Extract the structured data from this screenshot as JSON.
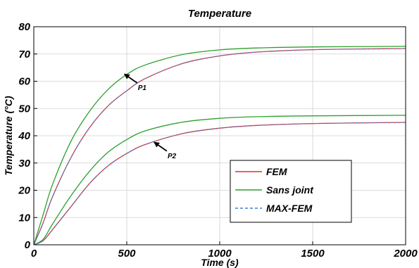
{
  "chart_data": {
    "type": "line",
    "title": "Temperature",
    "xlabel": "Time (s)",
    "ylabel": "Temperature (°C)",
    "xlim": [
      0,
      2000
    ],
    "ylim": [
      0,
      80
    ],
    "xticks": [
      0,
      500,
      1000,
      1500,
      2000
    ],
    "yticks": [
      0,
      10,
      20,
      30,
      40,
      50,
      60,
      70,
      80
    ],
    "grid": true,
    "legend_position": "bottom-right",
    "series": [
      {
        "name": "FEM",
        "color": "#e0302a",
        "dash": "solid",
        "curves": [
          {
            "x": [
              0,
              50,
              100,
              200,
              300,
              400,
              500,
              600,
              800,
              1000,
              1200,
              1500,
              2000
            ],
            "y": [
              0,
              8,
              17.5,
              32,
              43,
              51,
              56.5,
              61,
              66.5,
              69.3,
              70.7,
              71.6,
              72
            ]
          },
          {
            "x": [
              0,
              50,
              100,
              200,
              300,
              400,
              500,
              600,
              800,
              1000,
              1200,
              1500,
              2000
            ],
            "y": [
              0,
              1.5,
              5.5,
              14,
              22.5,
              29,
              33.5,
              36.8,
              40.8,
              42.8,
              43.8,
              44.5,
              44.9
            ]
          }
        ]
      },
      {
        "name": "Sans joint",
        "color": "#2ca02c",
        "dash": "solid",
        "curves": [
          {
            "x": [
              0,
              50,
              100,
              200,
              300,
              400,
              500,
              600,
              800,
              1000,
              1200,
              1500,
              2000
            ],
            "y": [
              0,
              11,
              22,
              38,
              49,
              57,
              62.5,
              66,
              69.8,
              71.5,
              72.2,
              72.6,
              72.8
            ]
          },
          {
            "x": [
              0,
              50,
              100,
              200,
              300,
              400,
              500,
              600,
              800,
              1000,
              1200,
              1500,
              2000
            ],
            "y": [
              0,
              2,
              7.5,
              18,
              27,
              34,
              38.6,
              41.8,
              45,
              46.4,
              47,
              47.3,
              47.5
            ]
          }
        ]
      },
      {
        "name": "MAX-FEM",
        "color": "#3d7fd6",
        "dash": "dashed",
        "curves": [
          {
            "x": [
              0,
              50,
              100,
              200,
              300,
              400,
              500,
              600,
              800,
              1000,
              1200,
              1500,
              2000
            ],
            "y": [
              0,
              8,
              17.5,
              32,
              43,
              51,
              56.5,
              61,
              66.5,
              69.3,
              70.7,
              71.6,
              72
            ]
          },
          {
            "x": [
              0,
              50,
              100,
              200,
              300,
              400,
              500,
              600,
              800,
              1000,
              1200,
              1500,
              2000
            ],
            "y": [
              0,
              1.5,
              5.5,
              14,
              22.5,
              29,
              33.5,
              36.8,
              40.8,
              42.8,
              43.8,
              44.5,
              44.9
            ]
          }
        ]
      }
    ],
    "annotations": [
      {
        "text": "P1",
        "point_x": 480,
        "point_y": 63
      },
      {
        "text": "P2",
        "point_x": 640,
        "point_y": 38
      }
    ]
  }
}
